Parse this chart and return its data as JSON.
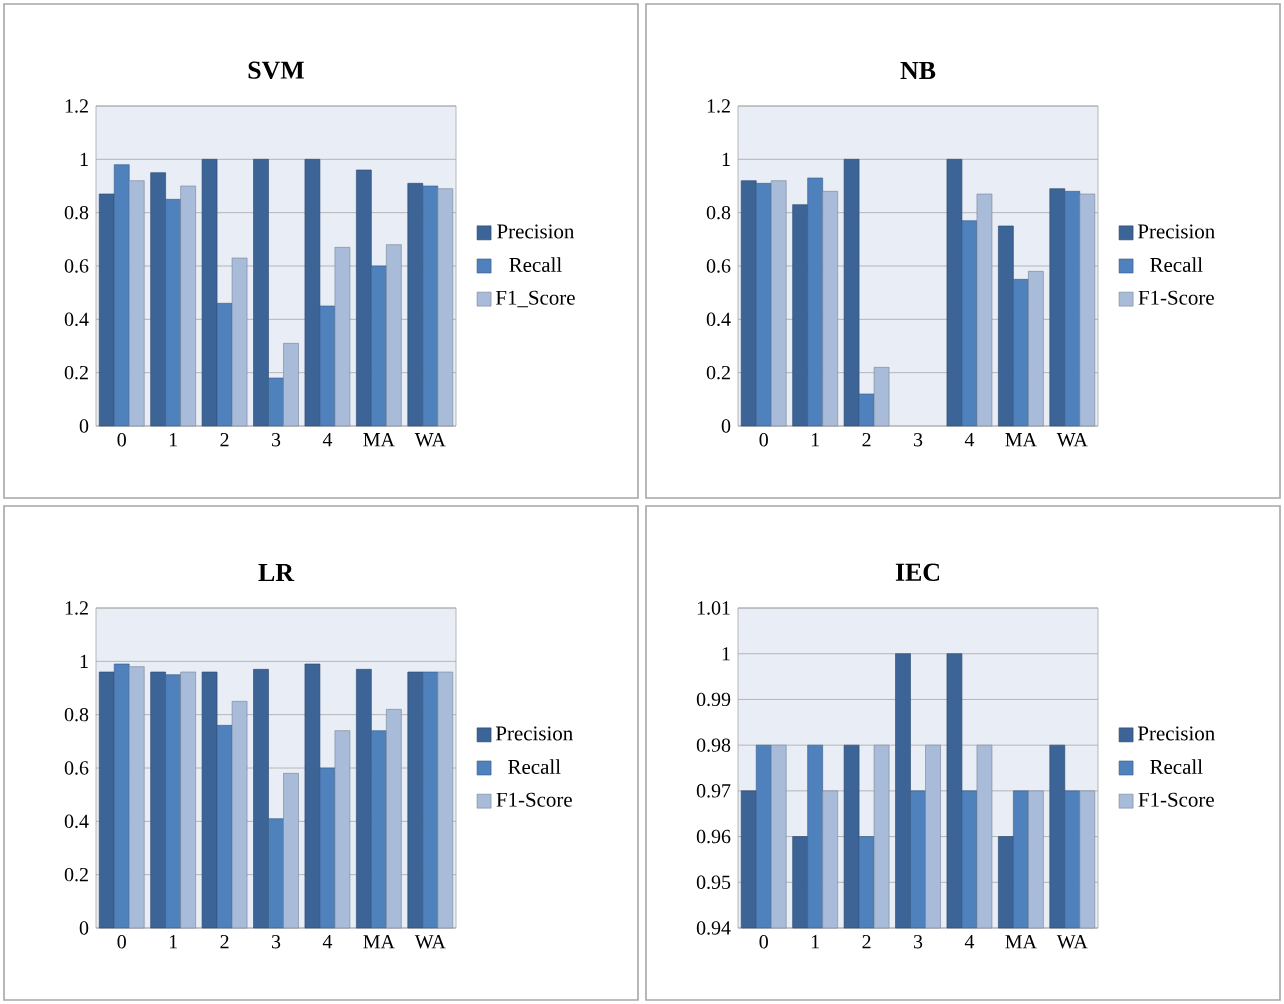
{
  "chart_data": [
    {
      "type": "bar",
      "title": "SVM",
      "categories": [
        "0",
        "1",
        "2",
        "3",
        "4",
        "MA",
        "WA"
      ],
      "ylim": [
        0,
        1.2
      ],
      "yticks": [
        0,
        0.2,
        0.4,
        0.6,
        0.8,
        1,
        1.2
      ],
      "grid": "y",
      "legend": "right",
      "series": [
        {
          "name": "Precision",
          "color": "#3c6496",
          "values": [
            0.87,
            0.95,
            1,
            1,
            1,
            0.96,
            0.91
          ]
        },
        {
          "name": "Recall",
          "color": "#4f81bd",
          "values": [
            0.98,
            0.85,
            0.46,
            0.18,
            0.45,
            0.6,
            0.9
          ]
        },
        {
          "name": "F1_Score",
          "color": "#a8bbd8",
          "values": [
            0.92,
            0.9,
            0.63,
            0.31,
            0.67,
            0.68,
            0.89
          ]
        }
      ]
    },
    {
      "type": "bar",
      "title": "NB",
      "categories": [
        "0",
        "1",
        "2",
        "3",
        "4",
        "MA",
        "WA"
      ],
      "ylim": [
        0,
        1.2
      ],
      "yticks": [
        0,
        0.2,
        0.4,
        0.6,
        0.8,
        1,
        1.2
      ],
      "grid": "y",
      "legend": "right",
      "series": [
        {
          "name": "Precision",
          "color": "#3c6496",
          "values": [
            0.92,
            0.83,
            1,
            null,
            1,
            0.75,
            0.89
          ]
        },
        {
          "name": "Recall",
          "color": "#4f81bd",
          "values": [
            0.91,
            0.93,
            0.12,
            null,
            0.77,
            0.55,
            0.88
          ]
        },
        {
          "name": "F1-Score",
          "color": "#a8bbd8",
          "values": [
            0.92,
            0.88,
            0.22,
            null,
            0.87,
            0.58,
            0.87
          ]
        }
      ]
    },
    {
      "type": "bar",
      "title": "LR",
      "categories": [
        "0",
        "1",
        "2",
        "3",
        "4",
        "MA",
        "WA"
      ],
      "ylim": [
        0,
        1.2
      ],
      "yticks": [
        0,
        0.2,
        0.4,
        0.6,
        0.8,
        1,
        1.2
      ],
      "grid": "y",
      "legend": "right",
      "series": [
        {
          "name": "Precision",
          "color": "#3c6496",
          "values": [
            0.96,
            0.96,
            0.96,
            0.97,
            0.99,
            0.97,
            0.96
          ]
        },
        {
          "name": "Recall",
          "color": "#4f81bd",
          "values": [
            0.99,
            0.95,
            0.76,
            0.41,
            0.6,
            0.74,
            0.96
          ]
        },
        {
          "name": "F1-Score",
          "color": "#a8bbd8",
          "values": [
            0.98,
            0.96,
            0.85,
            0.58,
            0.74,
            0.82,
            0.96
          ]
        }
      ]
    },
    {
      "type": "bar",
      "title": "IEC",
      "categories": [
        "0",
        "1",
        "2",
        "3",
        "4",
        "MA",
        "WA"
      ],
      "ylim": [
        0.94,
        1.01
      ],
      "yticks": [
        0.94,
        0.95,
        0.96,
        0.97,
        0.98,
        0.99,
        1,
        1.01
      ],
      "grid": "y",
      "legend": "right",
      "series": [
        {
          "name": "Precision",
          "color": "#3c6496",
          "values": [
            0.97,
            0.96,
            0.98,
            1,
            1,
            0.96,
            0.98
          ]
        },
        {
          "name": "Recall",
          "color": "#4f81bd",
          "values": [
            0.98,
            0.98,
            0.96,
            0.97,
            0.97,
            0.97,
            0.97
          ]
        },
        {
          "name": "F1-Score",
          "color": "#a8bbd8",
          "values": [
            0.98,
            0.97,
            0.98,
            0.98,
            0.98,
            0.97,
            0.97
          ]
        }
      ]
    }
  ]
}
